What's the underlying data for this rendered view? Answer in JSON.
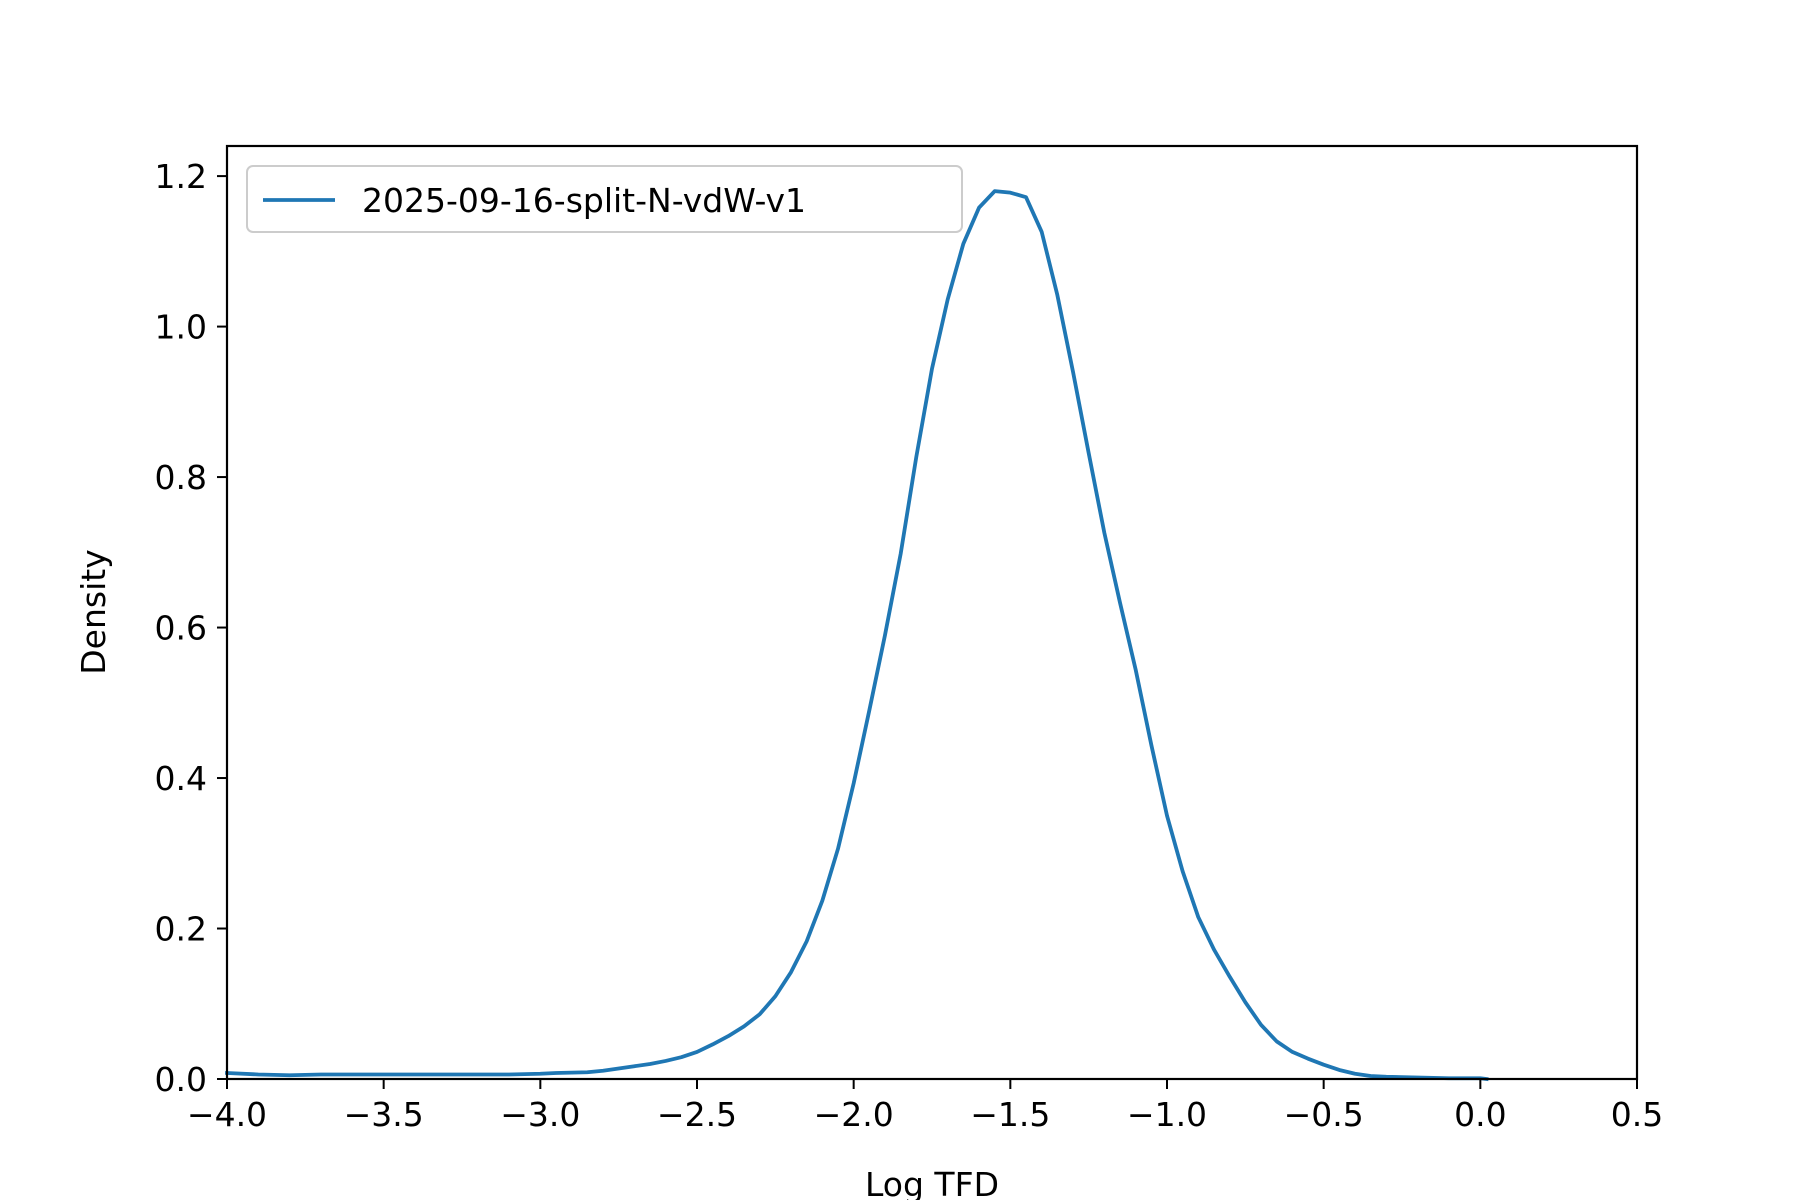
{
  "chart_data": {
    "type": "line",
    "title": "",
    "xlabel": "Log TFD",
    "ylabel": "Density",
    "xlim": [
      -4.0,
      0.5
    ],
    "ylim": [
      0.0,
      1.24
    ],
    "x_ticks": [
      -4.0,
      -3.5,
      -3.0,
      -2.5,
      -2.0,
      -1.5,
      -1.0,
      -0.5,
      0.0,
      0.5
    ],
    "x_tick_labels": [
      "−4.0",
      "−3.5",
      "−3.0",
      "−2.5",
      "−2.0",
      "−1.5",
      "−1.0",
      "−0.5",
      "0.0",
      "0.5"
    ],
    "y_ticks": [
      0.0,
      0.2,
      0.4,
      0.6,
      0.8,
      1.0,
      1.2
    ],
    "y_tick_labels": [
      "0.0",
      "0.2",
      "0.4",
      "0.6",
      "0.8",
      "1.0",
      "1.2"
    ],
    "grid": false,
    "legend": {
      "placement": "top-left"
    },
    "series": [
      {
        "name": "2025-09-16-split-N-vdW-v1",
        "color": "#1f77b4",
        "points": [
          [
            -4.0,
            0.008
          ],
          [
            -3.9,
            0.006
          ],
          [
            -3.8,
            0.005
          ],
          [
            -3.7,
            0.006
          ],
          [
            -3.6,
            0.006
          ],
          [
            -3.5,
            0.006
          ],
          [
            -3.4,
            0.006
          ],
          [
            -3.3,
            0.006
          ],
          [
            -3.2,
            0.006
          ],
          [
            -3.1,
            0.006
          ],
          [
            -3.0,
            0.007
          ],
          [
            -2.95,
            0.008
          ],
          [
            -2.85,
            0.009
          ],
          [
            -2.8,
            0.011
          ],
          [
            -2.75,
            0.014
          ],
          [
            -2.7,
            0.017
          ],
          [
            -2.65,
            0.02
          ],
          [
            -2.6,
            0.024
          ],
          [
            -2.55,
            0.029
          ],
          [
            -2.5,
            0.036
          ],
          [
            -2.45,
            0.046
          ],
          [
            -2.4,
            0.057
          ],
          [
            -2.35,
            0.07
          ],
          [
            -2.3,
            0.086
          ],
          [
            -2.25,
            0.11
          ],
          [
            -2.2,
            0.142
          ],
          [
            -2.15,
            0.183
          ],
          [
            -2.1,
            0.237
          ],
          [
            -2.05,
            0.306
          ],
          [
            -2.0,
            0.393
          ],
          [
            -1.95,
            0.49
          ],
          [
            -1.9,
            0.59
          ],
          [
            -1.85,
            0.698
          ],
          [
            -1.8,
            0.827
          ],
          [
            -1.75,
            0.944
          ],
          [
            -1.7,
            1.036
          ],
          [
            -1.65,
            1.11
          ],
          [
            -1.6,
            1.158
          ],
          [
            -1.55,
            1.18
          ],
          [
            -1.5,
            1.178
          ],
          [
            -1.45,
            1.172
          ],
          [
            -1.4,
            1.126
          ],
          [
            -1.35,
            1.042
          ],
          [
            -1.3,
            0.94
          ],
          [
            -1.25,
            0.832
          ],
          [
            -1.2,
            0.726
          ],
          [
            -1.15,
            0.633
          ],
          [
            -1.1,
            0.544
          ],
          [
            -1.05,
            0.444
          ],
          [
            -1.0,
            0.35
          ],
          [
            -0.95,
            0.276
          ],
          [
            -0.9,
            0.215
          ],
          [
            -0.85,
            0.172
          ],
          [
            -0.8,
            0.136
          ],
          [
            -0.75,
            0.102
          ],
          [
            -0.7,
            0.072
          ],
          [
            -0.65,
            0.05
          ],
          [
            -0.6,
            0.036
          ],
          [
            -0.55,
            0.027
          ],
          [
            -0.5,
            0.019
          ],
          [
            -0.45,
            0.012
          ],
          [
            -0.4,
            0.007
          ],
          [
            -0.35,
            0.004
          ],
          [
            -0.3,
            0.003
          ],
          [
            -0.2,
            0.002
          ],
          [
            -0.1,
            0.001
          ],
          [
            0.0,
            0.001
          ],
          [
            0.02,
            0.0
          ]
        ]
      }
    ]
  }
}
